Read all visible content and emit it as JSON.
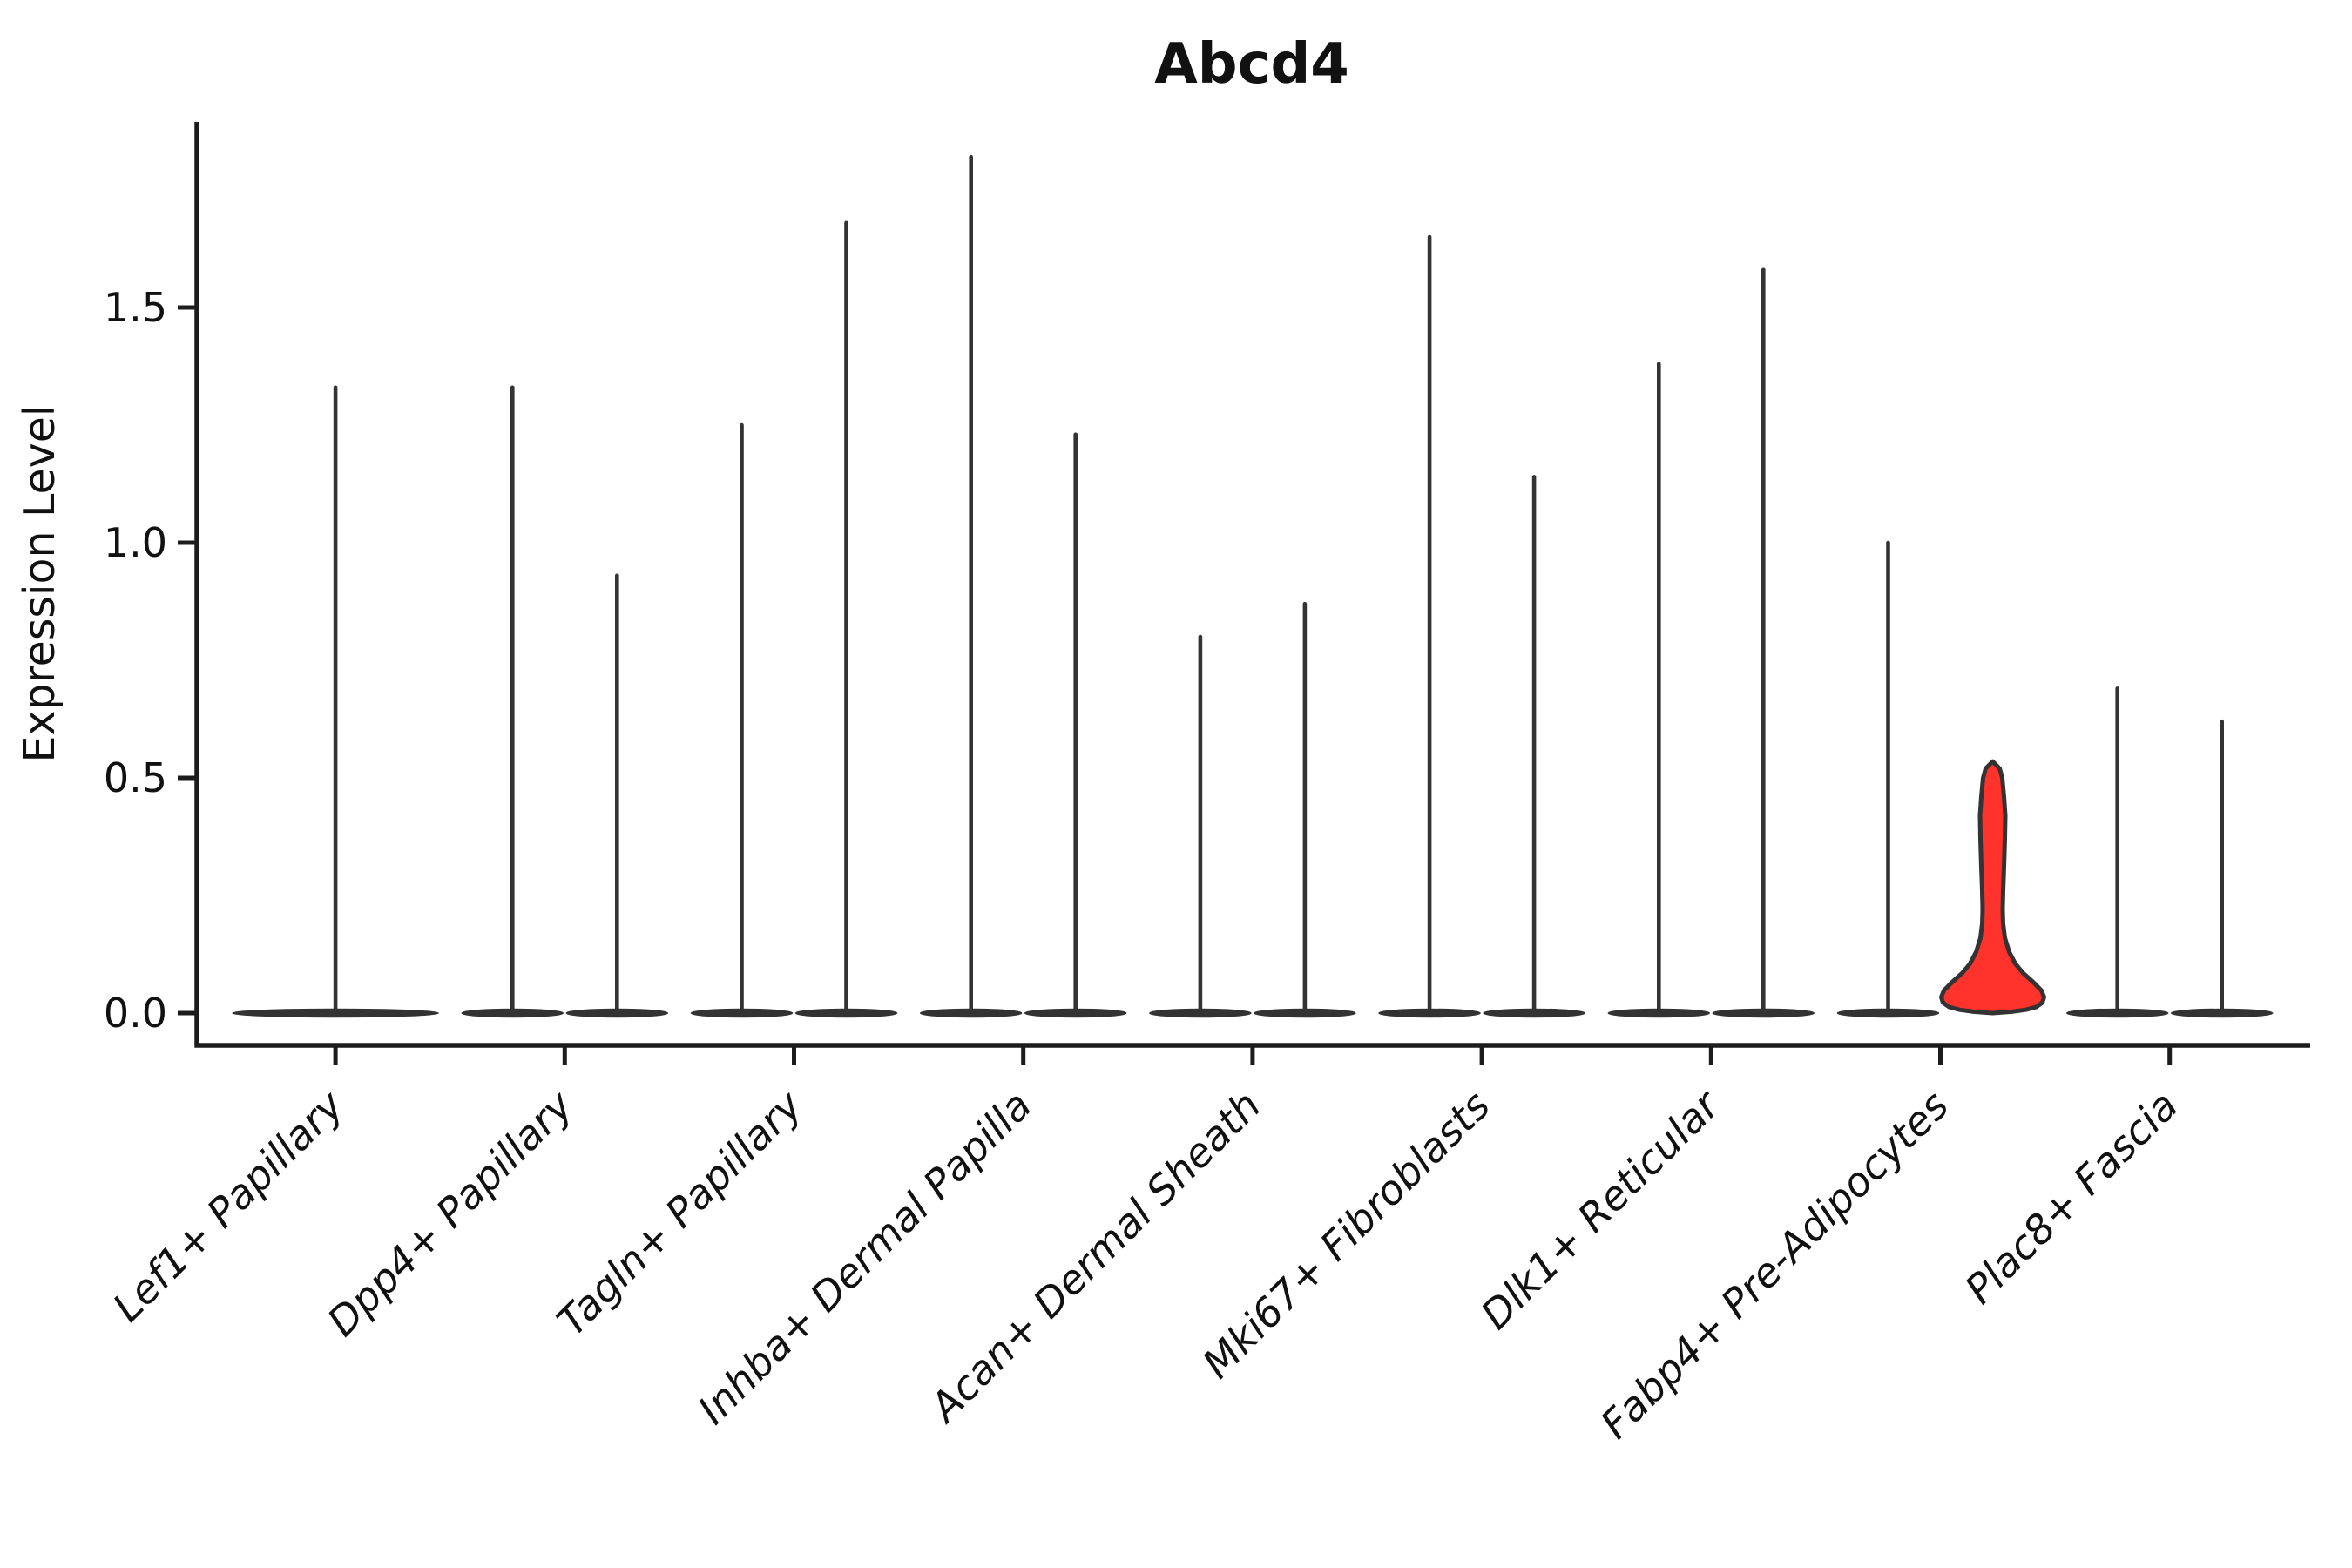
{
  "figure": {
    "background_color": "#ffffff",
    "line_color": "#333333",
    "axis_color": "#1c1c1c",
    "text_color": "#111111",
    "highlight_color": "#FF322C"
  },
  "chart_data": {
    "type": "violin",
    "title": "Abcd4",
    "xlabel": "",
    "ylabel": "Expression Level",
    "yticks": [
      0.0,
      0.5,
      1.0,
      1.5
    ],
    "ylim": [
      -0.07,
      1.93
    ],
    "grid": false,
    "legend": "none",
    "categories": [
      "Lef1+ Papillary",
      "Dpp4+ Papillary",
      "Tagln+ Papillary",
      "Inhba+ Dermal Papilla",
      "Acan+ Dermal Sheath",
      "Mki67+ Fibroblasts",
      "Dlk1+ Reticular",
      "Fabp4+ Pre-Adipocytes",
      "Plac8+ Fascia"
    ],
    "series": [
      {
        "category": "Lef1+ Papillary",
        "violins": [
          {
            "group": "only",
            "max_expression": 1.33,
            "bulk_at_zero": true,
            "highlight": false,
            "full_width": true
          }
        ]
      },
      {
        "category": "Dpp4+ Papillary",
        "violins": [
          {
            "group": "left",
            "max_expression": 1.33,
            "bulk_at_zero": true,
            "highlight": false
          },
          {
            "group": "right",
            "max_expression": 0.93,
            "bulk_at_zero": true,
            "highlight": false
          }
        ]
      },
      {
        "category": "Tagln+ Papillary",
        "violins": [
          {
            "group": "left",
            "max_expression": 1.25,
            "bulk_at_zero": true,
            "highlight": false
          },
          {
            "group": "right",
            "max_expression": 1.68,
            "bulk_at_zero": true,
            "highlight": false
          }
        ]
      },
      {
        "category": "Inhba+ Dermal Papilla",
        "violins": [
          {
            "group": "left",
            "max_expression": 1.82,
            "bulk_at_zero": true,
            "highlight": false
          },
          {
            "group": "right",
            "max_expression": 1.23,
            "bulk_at_zero": true,
            "highlight": false
          }
        ]
      },
      {
        "category": "Acan+ Dermal Sheath",
        "violins": [
          {
            "group": "left",
            "max_expression": 0.8,
            "bulk_at_zero": true,
            "highlight": false
          },
          {
            "group": "right",
            "max_expression": 0.87,
            "bulk_at_zero": true,
            "highlight": false
          }
        ]
      },
      {
        "category": "Mki67+ Fibroblasts",
        "violins": [
          {
            "group": "left",
            "max_expression": 1.65,
            "bulk_at_zero": true,
            "highlight": false
          },
          {
            "group": "right",
            "max_expression": 1.14,
            "bulk_at_zero": true,
            "highlight": false
          }
        ]
      },
      {
        "category": "Dlk1+ Reticular",
        "violins": [
          {
            "group": "left",
            "max_expression": 1.38,
            "bulk_at_zero": true,
            "highlight": false
          },
          {
            "group": "right",
            "max_expression": 1.58,
            "bulk_at_zero": true,
            "highlight": false
          }
        ]
      },
      {
        "category": "Fabp4+ Pre-Adipocytes",
        "violins": [
          {
            "group": "left",
            "max_expression": 1.0,
            "bulk_at_zero": true,
            "highlight": false
          },
          {
            "group": "right",
            "max_expression": 0.52,
            "bulk_at_zero": true,
            "highlight": true
          }
        ]
      },
      {
        "category": "Plac8+ Fascia",
        "violins": [
          {
            "group": "left",
            "max_expression": 0.69,
            "bulk_at_zero": true,
            "highlight": false
          },
          {
            "group": "right",
            "max_expression": 0.62,
            "bulk_at_zero": true,
            "highlight": false
          }
        ]
      }
    ],
    "highlight_violin_profile": [
      [
        0.535,
        0
      ],
      [
        0.52,
        8
      ],
      [
        0.5,
        11
      ],
      [
        0.46,
        13
      ],
      [
        0.42,
        14.5
      ],
      [
        0.37,
        14
      ],
      [
        0.31,
        13
      ],
      [
        0.26,
        12
      ],
      [
        0.22,
        11.5
      ],
      [
        0.19,
        12
      ],
      [
        0.16,
        14
      ],
      [
        0.13,
        19
      ],
      [
        0.105,
        26
      ],
      [
        0.085,
        35
      ],
      [
        0.065,
        47
      ],
      [
        0.048,
        56
      ],
      [
        0.034,
        59
      ],
      [
        0.022,
        57
      ],
      [
        0.013,
        50
      ],
      [
        0.007,
        38
      ],
      [
        0.003,
        22
      ],
      [
        0.0,
        0
      ]
    ]
  }
}
